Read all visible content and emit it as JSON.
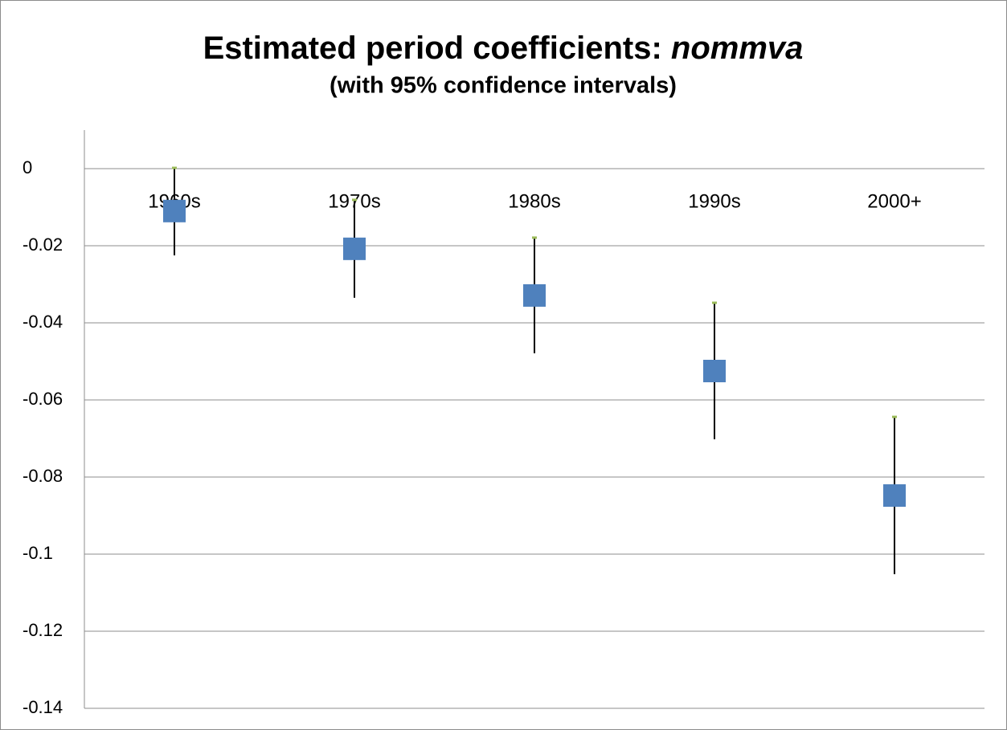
{
  "chart_data": {
    "type": "errorbar",
    "title": "Estimated period coefficients:",
    "title_emphasis": "nommva",
    "subtitle": "(with 95% confidence intervals)",
    "categories": [
      "1960s",
      "1970s",
      "1980s",
      "1990s",
      "2000+"
    ],
    "series": [
      {
        "color": "#4f81bd",
        "cap_color": "#9bbb59",
        "values": [
          -0.011,
          -0.0208,
          -0.0329,
          -0.0525,
          -0.0848
        ],
        "ci_low": [
          -0.0225,
          -0.0335,
          -0.0479,
          -0.0702,
          -0.1052
        ],
        "ci_high": [
          0.0002,
          -0.0081,
          -0.0179,
          -0.0348,
          -0.0644
        ]
      }
    ],
    "ylim": [
      -0.14,
      0.01
    ],
    "yticks": [
      0,
      -0.02,
      -0.04,
      -0.06,
      -0.08,
      -0.1,
      -0.12,
      -0.14
    ],
    "grid": true
  }
}
